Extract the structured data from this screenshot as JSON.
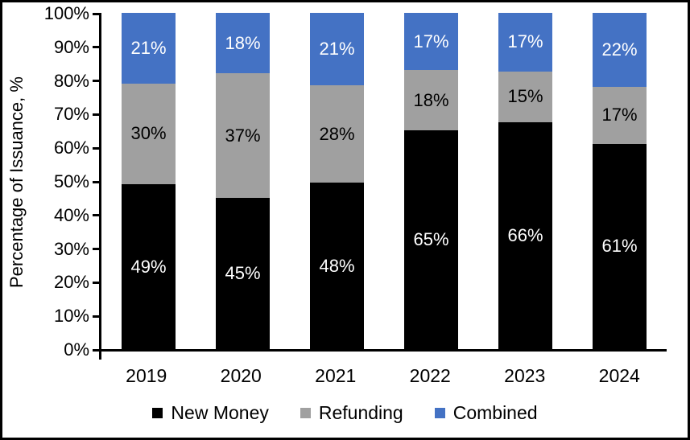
{
  "chart_data": {
    "type": "bar",
    "stacked": true,
    "title": "",
    "xlabel": "",
    "ylabel": "Percentage of Issuance, %",
    "ylim": [
      0,
      100
    ],
    "ytick_step": 10,
    "ytick_suffix": "%",
    "data_label_suffix": "%",
    "grid": false,
    "legend_position": "bottom",
    "categories": [
      "2019",
      "2020",
      "2021",
      "2022",
      "2023",
      "2024"
    ],
    "series": [
      {
        "name": "New Money",
        "color": "#000000",
        "label_color": "#ffffff",
        "values": [
          49,
          45,
          48,
          65,
          66,
          61
        ]
      },
      {
        "name": "Refunding",
        "color": "#A0A0A0",
        "label_color": "#000000",
        "values": [
          30,
          37,
          28,
          18,
          15,
          17
        ]
      },
      {
        "name": "Combined",
        "color": "#4472C4",
        "label_color": "#ffffff",
        "values": [
          21,
          18,
          21,
          17,
          17,
          22
        ]
      }
    ]
  },
  "colors": {
    "axis": "#000000",
    "background": "#ffffff",
    "border": "#000000"
  }
}
